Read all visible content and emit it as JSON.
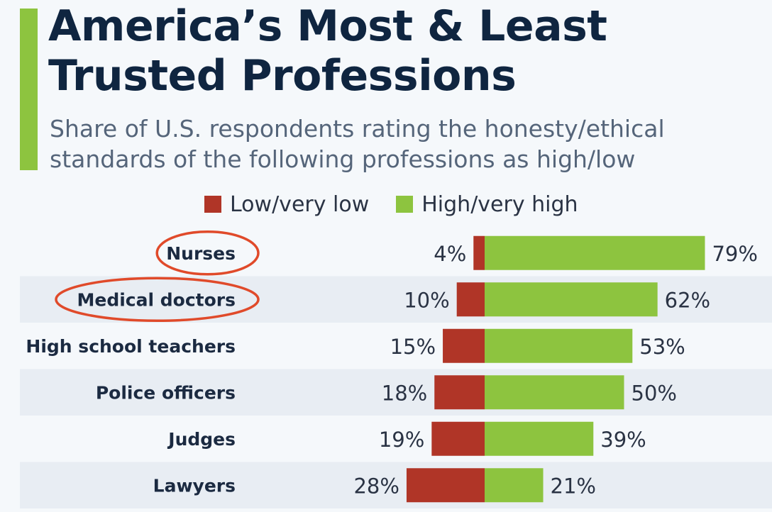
{
  "title_line1": "America’s Most & Least",
  "title_line2": "Trusted Professions",
  "subtitle_line1": "Share of U.S. respondents rating the honesty/ethical",
  "subtitle_line2": "standards of the following professions as high/low",
  "colors": {
    "title": "#0f2540",
    "subtitle": "#55657a",
    "accent": "#8dc43f",
    "low": "#b03527",
    "high": "#8dc43f",
    "label": "#1b2a41",
    "value": "#2a3344",
    "band": "#e8edf3",
    "highlight": "#e04a2a"
  },
  "chart_data": {
    "type": "bar",
    "orientation": "horizontal-diverging",
    "title": "America’s Most & Least Trusted Professions",
    "subtitle": "Share of U.S. respondents rating the honesty/ethical standards of the following professions as high/low",
    "categories": [
      "Nurses",
      "Medical doctors",
      "High school teachers",
      "Police officers",
      "Judges",
      "Lawyers"
    ],
    "series": [
      {
        "name": "Low/very low",
        "values": [
          4,
          10,
          15,
          18,
          19,
          28
        ],
        "labels": [
          "4%",
          "10%",
          "15%",
          "18%",
          "19%",
          "28%"
        ]
      },
      {
        "name": "High/very high",
        "values": [
          79,
          62,
          53,
          50,
          39,
          21
        ],
        "labels": [
          "79%",
          "62%",
          "53%",
          "50%",
          "39%",
          "21%"
        ]
      }
    ],
    "highlighted": [
      "Nurses",
      "Medical doctors"
    ],
    "legend_position": "top",
    "grid": false
  }
}
